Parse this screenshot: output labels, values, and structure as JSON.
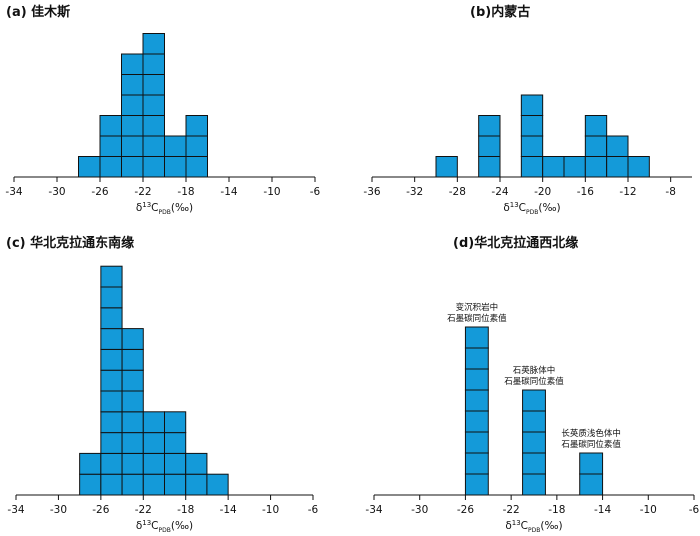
{
  "chart_data": [
    {
      "type": "bar",
      "title": "(a) 佳木斯",
      "xlabel": "δ¹³C_PDB(‰)",
      "xlim": [
        -34,
        -6
      ],
      "xticks": [
        -34,
        -30,
        -26,
        -22,
        -18,
        -14,
        -10,
        -6
      ],
      "bin_width": 2,
      "bin_starts": [
        -28,
        -26,
        -24,
        -22,
        -20,
        -18
      ],
      "counts": [
        1,
        3,
        6,
        7,
        2,
        3
      ],
      "annotations": []
    },
    {
      "type": "bar",
      "title": "(b)内蒙古",
      "xlabel": "δ¹³C_PDB(‰)",
      "xlim": [
        -36,
        -6
      ],
      "xticks": [
        -36,
        -32,
        -28,
        -24,
        -20,
        -16,
        -12,
        -8
      ],
      "bin_width": 2,
      "bin_starts": [
        -30,
        -26,
        -22,
        -20,
        -18,
        -16,
        -14,
        -12
      ],
      "counts": [
        1,
        3,
        4,
        1,
        1,
        3,
        2,
        1
      ],
      "annotations": []
    },
    {
      "type": "bar",
      "title": "(c) 华北克拉通东南缘",
      "xlabel": "δ¹³C_PDB(‰)",
      "xlim": [
        -34,
        -6
      ],
      "xticks": [
        -34,
        -30,
        -26,
        -22,
        -18,
        -14,
        -10,
        -6
      ],
      "bin_width": 2,
      "bin_starts": [
        -28,
        -26,
        -24,
        -22,
        -20,
        -18,
        -16
      ],
      "counts": [
        2,
        11,
        8,
        4,
        4,
        2,
        1
      ],
      "annotations": []
    },
    {
      "type": "bar",
      "title": "(d)华北克拉通西北缘",
      "xlabel": "δ¹³C_PDB(‰)",
      "xlim": [
        -34,
        -6
      ],
      "xticks": [
        -34,
        -30,
        -26,
        -22,
        -18,
        -14,
        -10,
        -6
      ],
      "bin_width": 2,
      "bin_starts": [
        -26,
        -21,
        -16
      ],
      "counts": [
        8,
        5,
        2
      ],
      "annotations": [
        {
          "bar_index": 0,
          "lines": [
            "变沉积岩中",
            "石墨碳同位素值"
          ]
        },
        {
          "bar_index": 1,
          "lines": [
            "石英脉体中",
            "石墨碳同位素值"
          ]
        },
        {
          "bar_index": 2,
          "lines": [
            "长英质浅色体中",
            "石墨碳同位素值"
          ]
        }
      ]
    }
  ]
}
